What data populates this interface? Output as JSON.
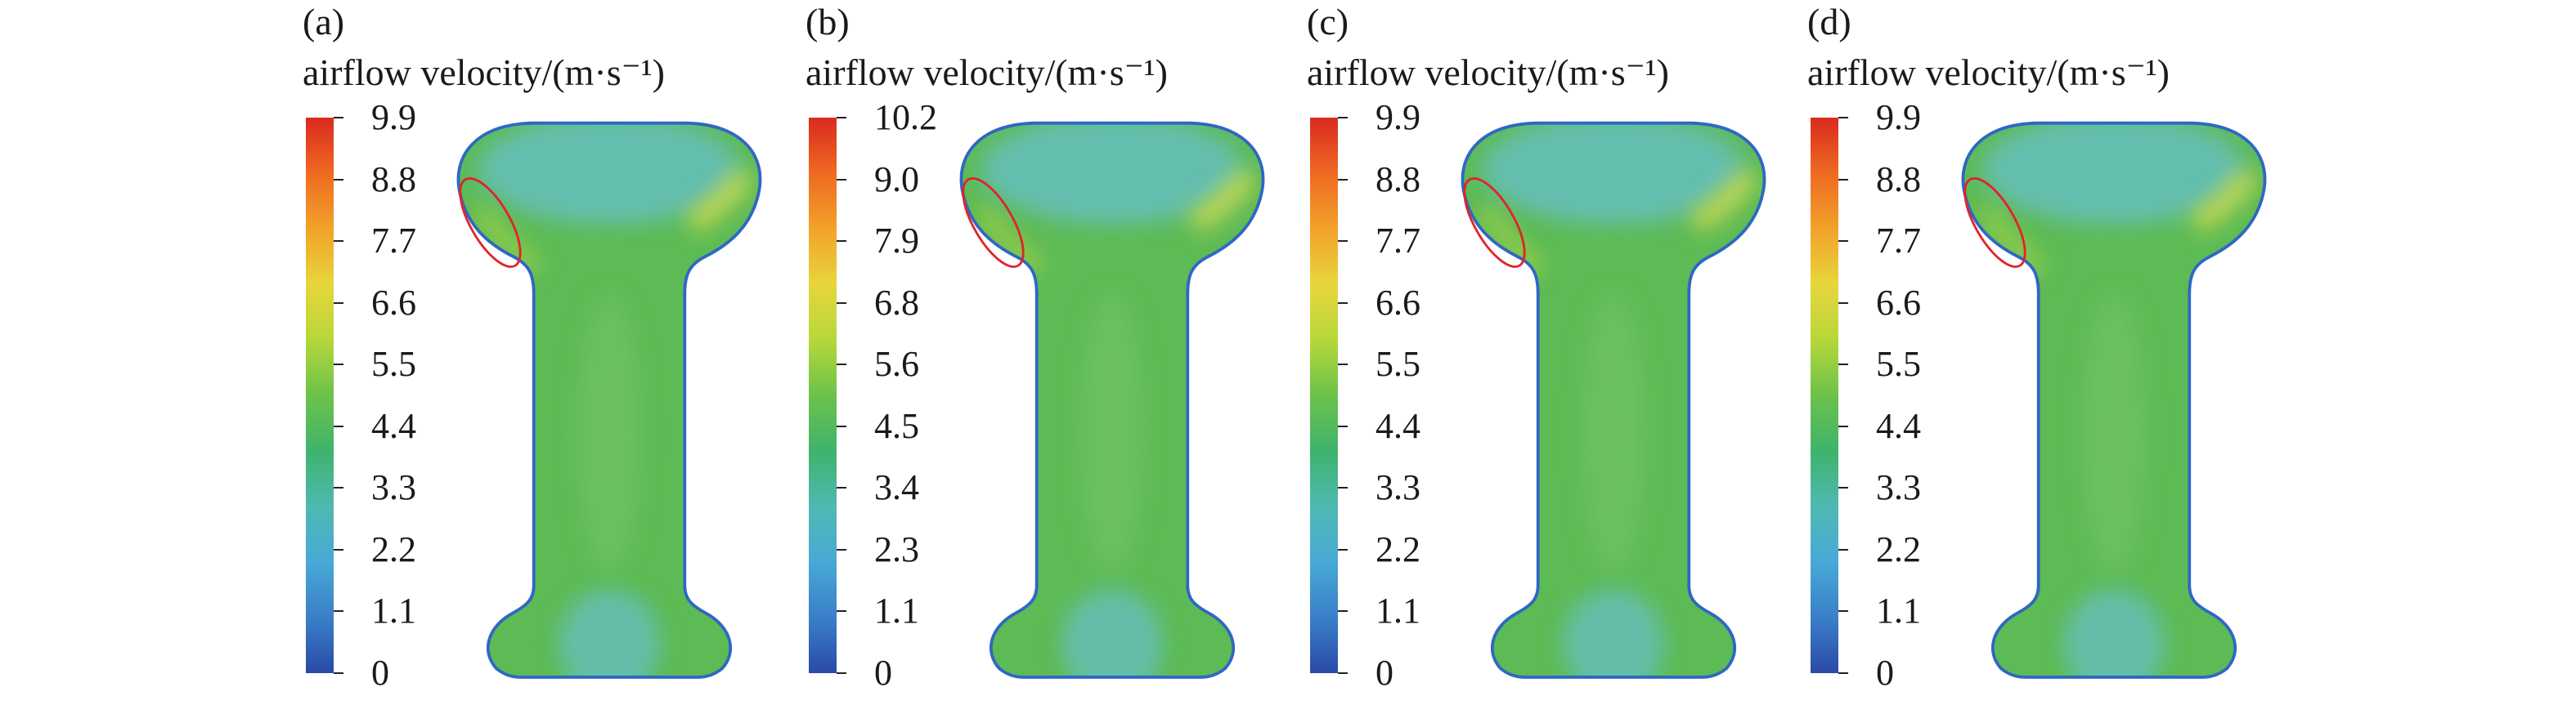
{
  "legend_title": "airflow velocity/(m·s⁻¹)",
  "panels": [
    {
      "label": "(a)",
      "ticks": [
        "9.9",
        "8.8",
        "7.7",
        "6.6",
        "5.5",
        "4.4",
        "3.3",
        "2.2",
        "1.1",
        "0"
      ]
    },
    {
      "label": "(b)",
      "ticks": [
        "10.2",
        "9.0",
        "7.9",
        "6.8",
        "5.6",
        "4.5",
        "3.4",
        "2.3",
        "1.1",
        "0"
      ]
    },
    {
      "label": "(c)",
      "ticks": [
        "9.9",
        "8.8",
        "7.7",
        "6.6",
        "5.5",
        "4.4",
        "3.3",
        "2.2",
        "1.1",
        "0"
      ]
    },
    {
      "label": "(d)",
      "ticks": [
        "9.9",
        "8.8",
        "7.7",
        "6.6",
        "5.5",
        "4.4",
        "3.3",
        "2.2",
        "1.1",
        "0"
      ]
    }
  ],
  "colors": {
    "domain_green": "#5dbb55",
    "core_cyan": "#66bfbf",
    "wall_blue": "#2f67c4",
    "highlight_yellow": "#d6dd4b",
    "annotation_red": "#e0242a"
  }
}
